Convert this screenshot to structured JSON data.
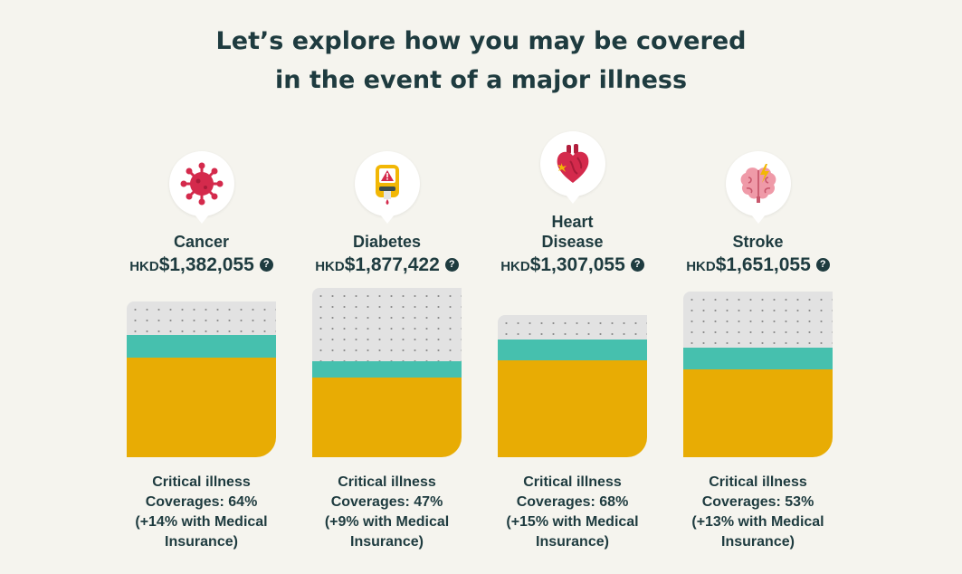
{
  "page": {
    "title_line1": "Let’s explore how you may be covered",
    "title_line2": "in the event of a major illness"
  },
  "colors": {
    "background": "#f5f4ee",
    "text": "#1e3b3f",
    "critical_illness": "#e8ac04",
    "medical_insurance": "#46c0ae",
    "gap": "#e2e2e2"
  },
  "illnesses": [
    {
      "name_lines": [
        "Cancer"
      ],
      "icon": "virus-icon",
      "currency": "HKD",
      "amount": "$1,382,055",
      "help_icon": "?",
      "critical_illness_coverage_pct": 64,
      "medical_insurance_extra_pct": 14,
      "caption": [
        "Critical illness",
        "Coverages: 64%",
        "(+14% with Medical",
        "Insurance)"
      ]
    },
    {
      "name_lines": [
        "Diabetes"
      ],
      "icon": "glucose-meter-icon",
      "currency": "HKD",
      "amount": "$1,877,422",
      "help_icon": "?",
      "critical_illness_coverage_pct": 47,
      "medical_insurance_extra_pct": 9,
      "caption": [
        "Critical illness",
        "Coverages: 47%",
        "(+9% with Medical",
        "Insurance)"
      ]
    },
    {
      "name_lines": [
        "Heart",
        "Disease"
      ],
      "icon": "heart-icon",
      "currency": "HKD",
      "amount": "$1,307,055",
      "help_icon": "?",
      "critical_illness_coverage_pct": 68,
      "medical_insurance_extra_pct": 15,
      "caption": [
        "Critical illness",
        "Coverages: 68%",
        "(+15% with Medical",
        "Insurance)"
      ]
    },
    {
      "name_lines": [
        "Stroke"
      ],
      "icon": "brain-icon",
      "currency": "HKD",
      "amount": "$1,651,055",
      "help_icon": "?",
      "critical_illness_coverage_pct": 53,
      "medical_insurance_extra_pct": 13,
      "caption": [
        "Critical illness",
        "Coverages: 53%",
        "(+13% with Medical",
        "Insurance)"
      ]
    }
  ]
}
